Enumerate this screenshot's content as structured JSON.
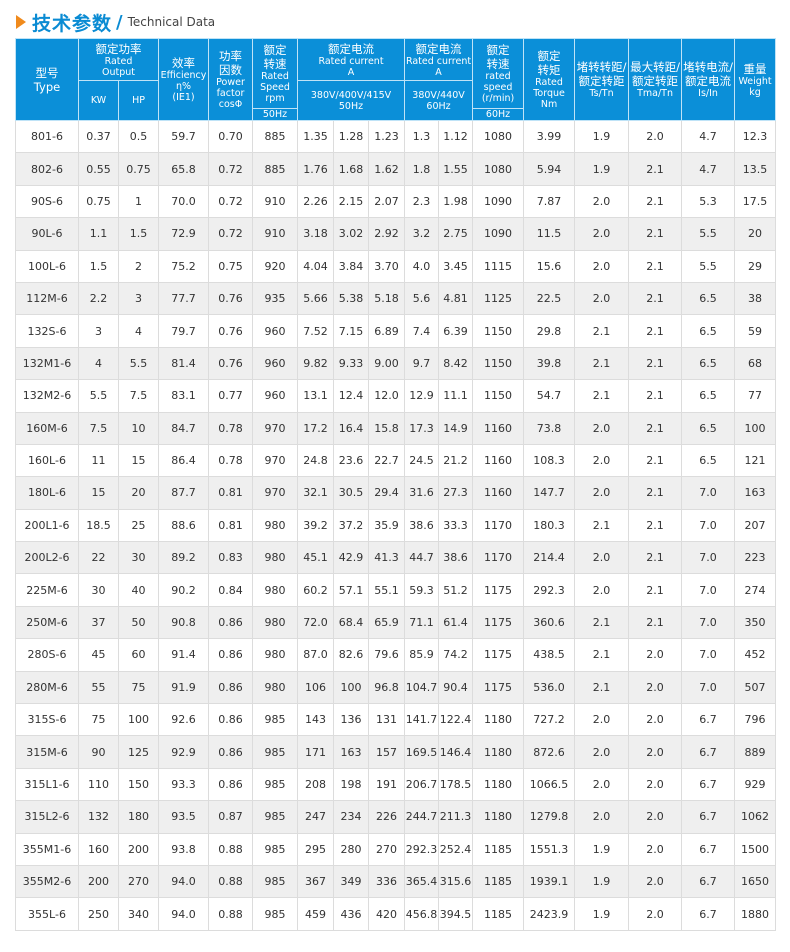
{
  "title": {
    "cn": "技术参数",
    "sep": "/",
    "en": "Technical Data",
    "arrow_color": "#f08a1c",
    "accent": "#0b8fd8"
  },
  "header": {
    "type": {
      "cn": "型号",
      "en": "Type"
    },
    "output": {
      "cn": "额定功率",
      "en1": "Rated",
      "en2": "Output",
      "kw": "KW",
      "hp": "HP"
    },
    "efficiency": {
      "cn": "效率",
      "en1": "Efficiency",
      "en2": "η%",
      "en3": "(IE1)"
    },
    "pf": {
      "cn1": "功率",
      "cn2": "因数",
      "en1": "Power",
      "en2": "factor",
      "en3": "cosΦ"
    },
    "speed50": {
      "cn1": "额定",
      "cn2": "转速",
      "en1": "Rated",
      "en2": "Speed",
      "en3": "rpm",
      "hz": "50Hz"
    },
    "current50": {
      "cn": "额定电流",
      "en1": "Rated current",
      "en2": "A",
      "v1": "380V/400V/415V",
      "v2": "50Hz"
    },
    "current60": {
      "cn": "额定电流",
      "en1": "Rated current",
      "en2": "A",
      "v1": "380V/440V",
      "v2": "60Hz"
    },
    "speed60": {
      "cn1": "额定",
      "cn2": "转速",
      "en1": "rated",
      "en2": "speed",
      "en3": "(r/min)",
      "hz": "60Hz"
    },
    "torque": {
      "cn1": "额定",
      "cn2": "转矩",
      "en1": "Rated",
      "en2": "Torque",
      "en3": "Nm"
    },
    "ts": {
      "cn1": "堵转转距/",
      "cn2": "额定转距",
      "en": "Ts/Tn"
    },
    "tma": {
      "cn1": "最大转距/",
      "cn2": "额定转距",
      "en": "Tma/Tn"
    },
    "is": {
      "cn1": "堵转电流/",
      "cn2": "额定电流",
      "en": "Is/In"
    },
    "weight": {
      "cn": "重量",
      "en1": "Weight",
      "en2": "kg"
    }
  },
  "rows": [
    [
      "801-6",
      "0.37",
      "0.5",
      "59.7",
      "0.70",
      "885",
      "1.35",
      "1.28",
      "1.23",
      "1.3",
      "1.12",
      "1080",
      "3.99",
      "1.9",
      "2.0",
      "4.7",
      "12.3"
    ],
    [
      "802-6",
      "0.55",
      "0.75",
      "65.8",
      "0.72",
      "885",
      "1.76",
      "1.68",
      "1.62",
      "1.8",
      "1.55",
      "1080",
      "5.94",
      "1.9",
      "2.1",
      "4.7",
      "13.5"
    ],
    [
      "90S-6",
      "0.75",
      "1",
      "70.0",
      "0.72",
      "910",
      "2.26",
      "2.15",
      "2.07",
      "2.3",
      "1.98",
      "1090",
      "7.87",
      "2.0",
      "2.1",
      "5.3",
      "17.5"
    ],
    [
      "90L-6",
      "1.1",
      "1.5",
      "72.9",
      "0.72",
      "910",
      "3.18",
      "3.02",
      "2.92",
      "3.2",
      "2.75",
      "1090",
      "11.5",
      "2.0",
      "2.1",
      "5.5",
      "20"
    ],
    [
      "100L-6",
      "1.5",
      "2",
      "75.2",
      "0.75",
      "920",
      "4.04",
      "3.84",
      "3.70",
      "4.0",
      "3.45",
      "1115",
      "15.6",
      "2.0",
      "2.1",
      "5.5",
      "29"
    ],
    [
      "112M-6",
      "2.2",
      "3",
      "77.7",
      "0.76",
      "935",
      "5.66",
      "5.38",
      "5.18",
      "5.6",
      "4.81",
      "1125",
      "22.5",
      "2.0",
      "2.1",
      "6.5",
      "38"
    ],
    [
      "132S-6",
      "3",
      "4",
      "79.7",
      "0.76",
      "960",
      "7.52",
      "7.15",
      "6.89",
      "7.4",
      "6.39",
      "1150",
      "29.8",
      "2.1",
      "2.1",
      "6.5",
      "59"
    ],
    [
      "132M1-6",
      "4",
      "5.5",
      "81.4",
      "0.76",
      "960",
      "9.82",
      "9.33",
      "9.00",
      "9.7",
      "8.42",
      "1150",
      "39.8",
      "2.1",
      "2.1",
      "6.5",
      "68"
    ],
    [
      "132M2-6",
      "5.5",
      "7.5",
      "83.1",
      "0.77",
      "960",
      "13.1",
      "12.4",
      "12.0",
      "12.9",
      "11.1",
      "1150",
      "54.7",
      "2.1",
      "2.1",
      "6.5",
      "77"
    ],
    [
      "160M-6",
      "7.5",
      "10",
      "84.7",
      "0.78",
      "970",
      "17.2",
      "16.4",
      "15.8",
      "17.3",
      "14.9",
      "1160",
      "73.8",
      "2.0",
      "2.1",
      "6.5",
      "100"
    ],
    [
      "160L-6",
      "11",
      "15",
      "86.4",
      "0.78",
      "970",
      "24.8",
      "23.6",
      "22.7",
      "24.5",
      "21.2",
      "1160",
      "108.3",
      "2.0",
      "2.1",
      "6.5",
      "121"
    ],
    [
      "180L-6",
      "15",
      "20",
      "87.7",
      "0.81",
      "970",
      "32.1",
      "30.5",
      "29.4",
      "31.6",
      "27.3",
      "1160",
      "147.7",
      "2.0",
      "2.1",
      "7.0",
      "163"
    ],
    [
      "200L1-6",
      "18.5",
      "25",
      "88.6",
      "0.81",
      "980",
      "39.2",
      "37.2",
      "35.9",
      "38.6",
      "33.3",
      "1170",
      "180.3",
      "2.1",
      "2.1",
      "7.0",
      "207"
    ],
    [
      "200L2-6",
      "22",
      "30",
      "89.2",
      "0.83",
      "980",
      "45.1",
      "42.9",
      "41.3",
      "44.7",
      "38.6",
      "1170",
      "214.4",
      "2.0",
      "2.1",
      "7.0",
      "223"
    ],
    [
      "225M-6",
      "30",
      "40",
      "90.2",
      "0.84",
      "980",
      "60.2",
      "57.1",
      "55.1",
      "59.3",
      "51.2",
      "1175",
      "292.3",
      "2.0",
      "2.1",
      "7.0",
      "274"
    ],
    [
      "250M-6",
      "37",
      "50",
      "90.8",
      "0.86",
      "980",
      "72.0",
      "68.4",
      "65.9",
      "71.1",
      "61.4",
      "1175",
      "360.6",
      "2.1",
      "2.1",
      "7.0",
      "350"
    ],
    [
      "280S-6",
      "45",
      "60",
      "91.4",
      "0.86",
      "980",
      "87.0",
      "82.6",
      "79.6",
      "85.9",
      "74.2",
      "1175",
      "438.5",
      "2.1",
      "2.0",
      "7.0",
      "452"
    ],
    [
      "280M-6",
      "55",
      "75",
      "91.9",
      "0.86",
      "980",
      "106",
      "100",
      "96.8",
      "104.7",
      "90.4",
      "1175",
      "536.0",
      "2.1",
      "2.0",
      "7.0",
      "507"
    ],
    [
      "315S-6",
      "75",
      "100",
      "92.6",
      "0.86",
      "985",
      "143",
      "136",
      "131",
      "141.7",
      "122.4",
      "1180",
      "727.2",
      "2.0",
      "2.0",
      "6.7",
      "796"
    ],
    [
      "315M-6",
      "90",
      "125",
      "92.9",
      "0.86",
      "985",
      "171",
      "163",
      "157",
      "169.5",
      "146.4",
      "1180",
      "872.6",
      "2.0",
      "2.0",
      "6.7",
      "889"
    ],
    [
      "315L1-6",
      "110",
      "150",
      "93.3",
      "0.86",
      "985",
      "208",
      "198",
      "191",
      "206.7",
      "178.5",
      "1180",
      "1066.5",
      "2.0",
      "2.0",
      "6.7",
      "929"
    ],
    [
      "315L2-6",
      "132",
      "180",
      "93.5",
      "0.87",
      "985",
      "247",
      "234",
      "226",
      "244.7",
      "211.3",
      "1180",
      "1279.8",
      "2.0",
      "2.0",
      "6.7",
      "1062"
    ],
    [
      "355M1-6",
      "160",
      "200",
      "93.8",
      "0.88",
      "985",
      "295",
      "280",
      "270",
      "292.3",
      "252.4",
      "1185",
      "1551.3",
      "1.9",
      "2.0",
      "6.7",
      "1500"
    ],
    [
      "355M2-6",
      "200",
      "270",
      "94.0",
      "0.88",
      "985",
      "367",
      "349",
      "336",
      "365.4",
      "315.6",
      "1185",
      "1939.1",
      "1.9",
      "2.0",
      "6.7",
      "1650"
    ],
    [
      "355L-6",
      "250",
      "340",
      "94.0",
      "0.88",
      "985",
      "459",
      "436",
      "420",
      "456.8",
      "394.5",
      "1185",
      "2423.9",
      "1.9",
      "2.0",
      "6.7",
      "1880"
    ]
  ]
}
